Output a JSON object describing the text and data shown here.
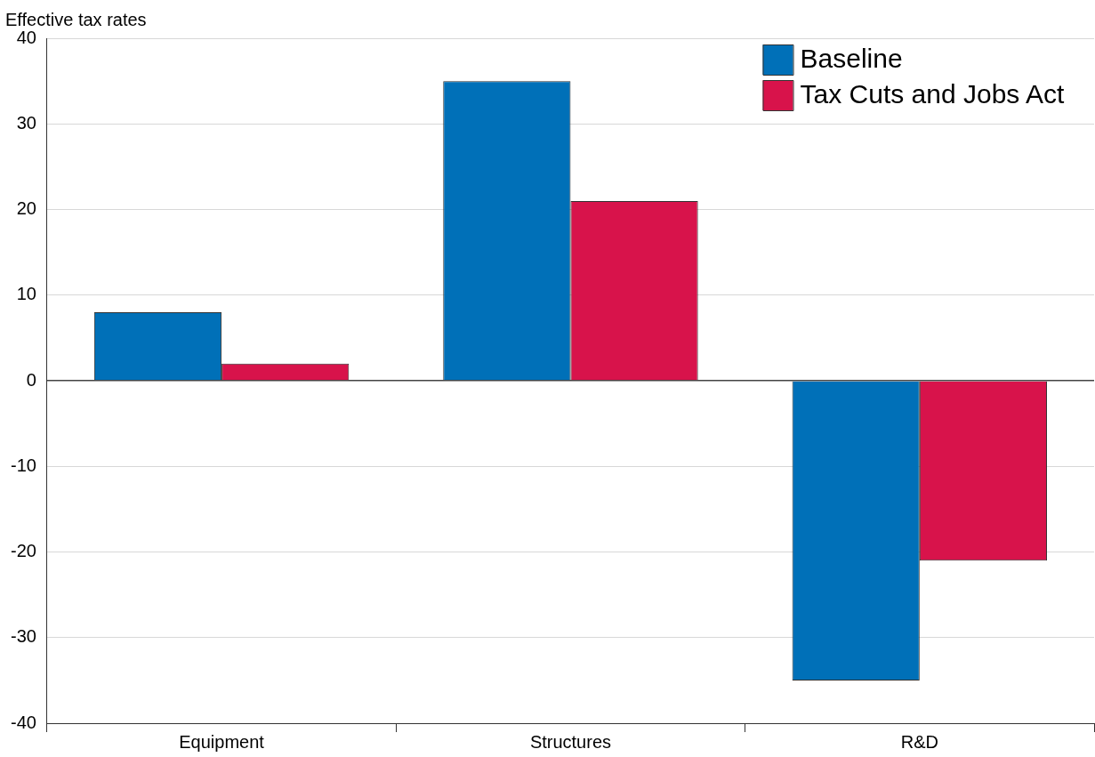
{
  "chart_data": {
    "type": "bar",
    "ylabel": "Effective tax rates",
    "categories": [
      "Equipment",
      "Structures",
      "R&D"
    ],
    "series": [
      {
        "name": "Baseline",
        "color": "#0070b8",
        "values": [
          8,
          35,
          -35
        ]
      },
      {
        "name": "Tax Cuts and Jobs Act",
        "color": "#d8134b",
        "values": [
          2,
          21,
          -21
        ]
      }
    ],
    "ylim": [
      -40,
      40
    ],
    "yticks": [
      -40,
      -30,
      -20,
      -10,
      0,
      10,
      20,
      30,
      40
    ],
    "grid": "y",
    "legend": "top right"
  }
}
